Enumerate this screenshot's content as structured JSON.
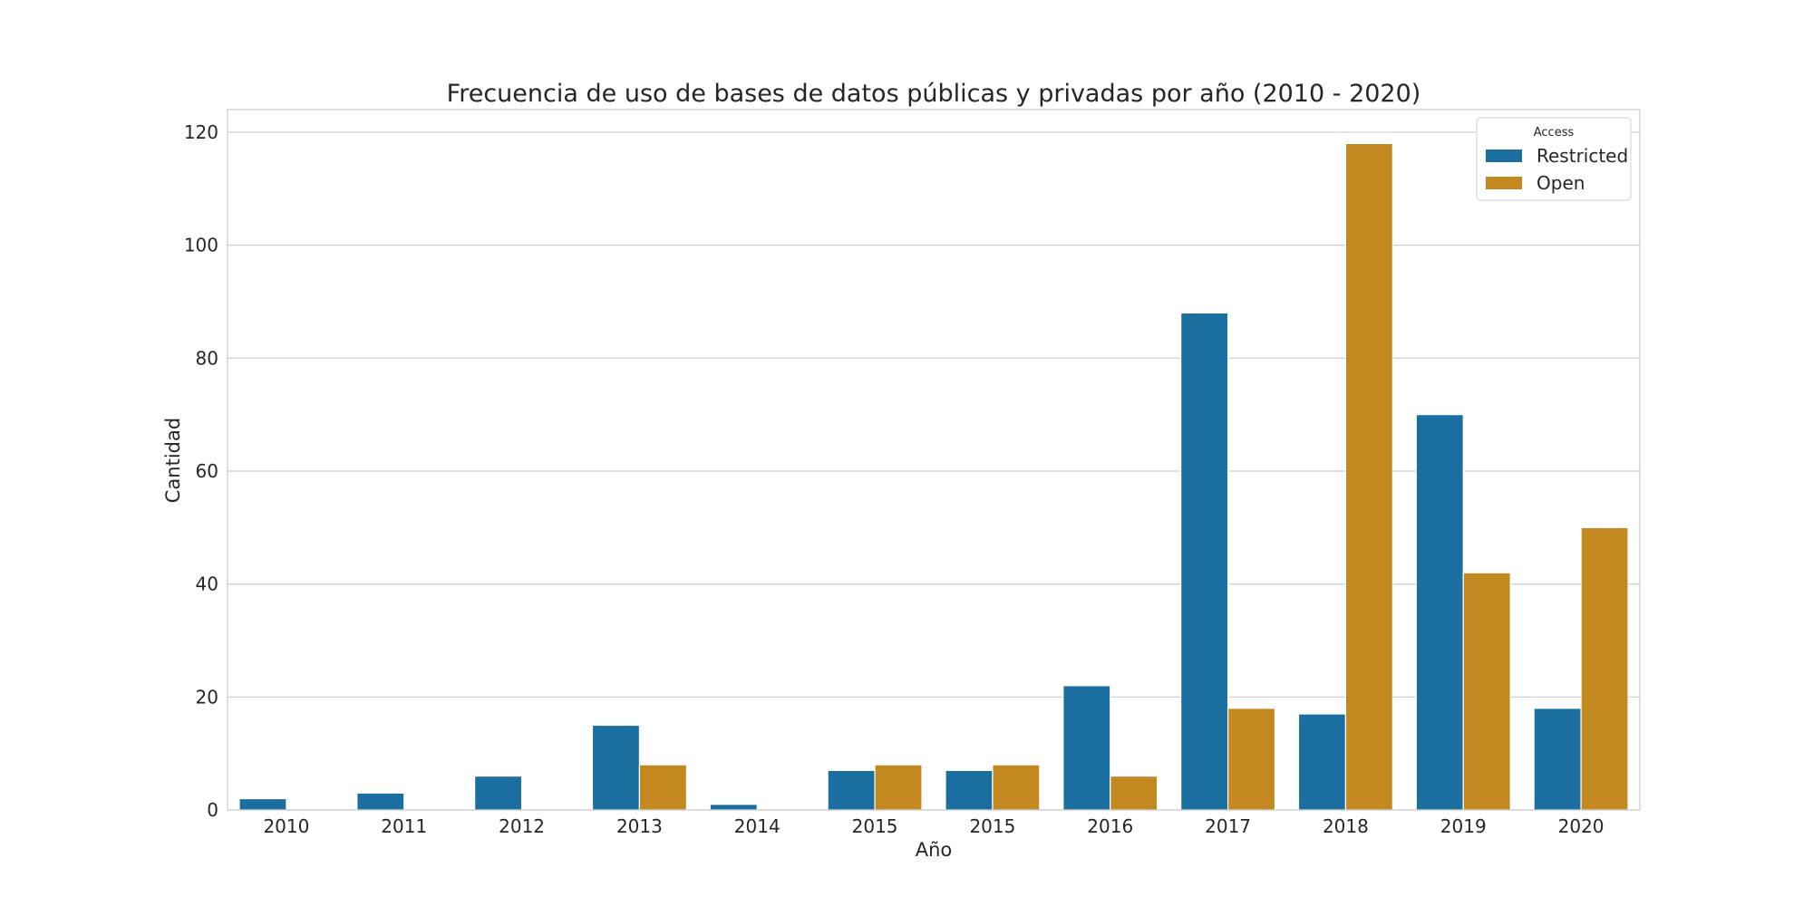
{
  "chart_data": {
    "type": "bar",
    "title": "Frecuencia de uso de bases de datos públicas y privadas por año (2010 - 2020)",
    "xlabel": "Año",
    "ylabel": "Cantidad",
    "categories": [
      "2010",
      "2011",
      "2012",
      "2013",
      "2014",
      "2015",
      "2015",
      "2016",
      "2017",
      "2018",
      "2019",
      "2020"
    ],
    "series": [
      {
        "name": "Restricted",
        "color": "#1a6fa0",
        "values": [
          2,
          3,
          6,
          15,
          1,
          7,
          7,
          22,
          88,
          17,
          70,
          18
        ]
      },
      {
        "name": "Open",
        "color": "#c38820",
        "values": [
          0,
          0,
          0,
          8,
          0,
          8,
          8,
          6,
          18,
          118,
          42,
          50
        ]
      }
    ],
    "ylim": [
      0,
      124
    ],
    "yticks": [
      0,
      20,
      40,
      60,
      80,
      100,
      120
    ],
    "grid": "horizontal",
    "legend": {
      "title": "Access",
      "placement": "top-right"
    }
  }
}
